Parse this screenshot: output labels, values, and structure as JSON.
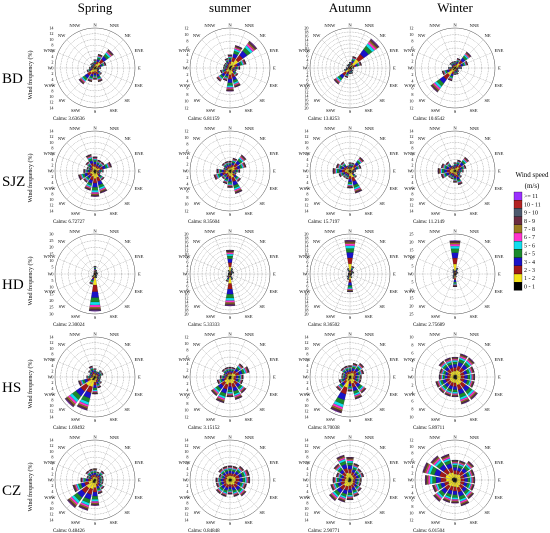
{
  "column_titles": [
    "Spring",
    "summer",
    "Autumn",
    "Winter"
  ],
  "row_labels": [
    "BD",
    "SJZ",
    "HD",
    "HS",
    "CZ"
  ],
  "ylabel": "Wind frequency (%)",
  "directions": [
    "N",
    "NNE",
    "NE",
    "ENE",
    "E",
    "ESE",
    "SE",
    "SSE",
    "S",
    "SSW",
    "SW",
    "WSW",
    "W",
    "WNW",
    "NW",
    "NNW"
  ],
  "calms_label": "Calms:",
  "legend": {
    "title_line1": "Wind speed",
    "title_line2": "(m/s)",
    "bins": [
      {
        "label": ">= 11",
        "color": "#9b30ff"
      },
      {
        "label": "10 - 11",
        "color": "#b22222"
      },
      {
        "label": "9 - 10",
        "color": "#4d5a6e"
      },
      {
        "label": "8 - 9",
        "color": "#6b2b40"
      },
      {
        "label": "7 - 8",
        "color": "#9a7b22"
      },
      {
        "label": "6 - 7",
        "color": "#ff33cc"
      },
      {
        "label": "5 - 6",
        "color": "#11ddee"
      },
      {
        "label": "4 - 5",
        "color": "#1a8a2c"
      },
      {
        "label": "3 - 4",
        "color": "#1a12c8"
      },
      {
        "label": "2 - 3",
        "color": "#a01818"
      },
      {
        "label": "1 - 2",
        "color": "#f4e21a"
      },
      {
        "label": "0 - 1",
        "color": "#000000"
      }
    ]
  },
  "chart_data": [
    {
      "type": "windrose",
      "site": "BD",
      "season": "Spring",
      "rmax": 14,
      "ticks": [
        2,
        4,
        6,
        8,
        10,
        12,
        14
      ],
      "calms": "3.63636",
      "frequencies": [
        3,
        5,
        8,
        4,
        2,
        1.5,
        3,
        5,
        4,
        5,
        7,
        3,
        2,
        1.5,
        2,
        2
      ]
    },
    {
      "type": "windrose",
      "site": "BD",
      "season": "summer",
      "rmax": 12,
      "ticks": [
        2,
        4,
        6,
        8,
        10,
        12
      ],
      "calms": "6.81159",
      "frequencies": [
        4,
        7,
        10,
        5,
        3,
        2,
        3,
        6,
        7,
        4,
        5,
        3,
        2,
        2,
        2,
        3
      ]
    },
    {
      "type": "windrose",
      "site": "BD",
      "season": "Autumn",
      "rmax": 20,
      "ticks": [
        2,
        4,
        6,
        8,
        10,
        12,
        14,
        16,
        18,
        20
      ],
      "calms": "13.8253",
      "frequencies": [
        3,
        6,
        18,
        6,
        2,
        1,
        2,
        3,
        3,
        5,
        10,
        3,
        2,
        1,
        2,
        2
      ]
    },
    {
      "type": "windrose",
      "site": "BD",
      "season": "Winter",
      "rmax": 12,
      "ticks": [
        2,
        4,
        6,
        8,
        10,
        12
      ],
      "calms": "10.6542",
      "frequencies": [
        2,
        3,
        6,
        4,
        2,
        1,
        1.5,
        2,
        2,
        4,
        9,
        4,
        2,
        1,
        2,
        2
      ]
    },
    {
      "type": "windrose",
      "site": "SJZ",
      "season": "Spring",
      "rmax": 14,
      "ticks": [
        2,
        4,
        6,
        8,
        10,
        12,
        14
      ],
      "calms": "6.72727",
      "frequencies": [
        5,
        4,
        4,
        6,
        3,
        2,
        4,
        8,
        9,
        7,
        5,
        6,
        4,
        3,
        4,
        6
      ]
    },
    {
      "type": "windrose",
      "site": "SJZ",
      "season": "summer",
      "rmax": 12,
      "ticks": [
        2,
        4,
        6,
        8,
        10,
        12
      ],
      "calms": "8.35604",
      "frequencies": [
        3,
        4,
        6,
        5,
        3,
        2,
        4,
        7,
        5,
        4,
        3,
        5,
        4,
        2,
        3,
        3
      ]
    },
    {
      "type": "windrose",
      "site": "SJZ",
      "season": "Autumn",
      "rmax": 14,
      "ticks": [
        2,
        4,
        6,
        8,
        10,
        12,
        14
      ],
      "calms": "15.7197",
      "frequencies": [
        3,
        3,
        6,
        4,
        2,
        1.5,
        3,
        8,
        6,
        3,
        3,
        4,
        6,
        5,
        4,
        2
      ]
    },
    {
      "type": "windrose",
      "site": "SJZ",
      "season": "Winter",
      "rmax": 14,
      "ticks": [
        2,
        4,
        6,
        8,
        10,
        12,
        14
      ],
      "calms": "11.2149",
      "frequencies": [
        3,
        4,
        6,
        4,
        3,
        2,
        3,
        5,
        4,
        3,
        3,
        5,
        6,
        5,
        4,
        2
      ]
    },
    {
      "type": "windrose",
      "site": "HD",
      "season": "Spring",
      "rmax": 30,
      "ticks": [
        5,
        10,
        15,
        20,
        25,
        30
      ],
      "calms": "2.30024",
      "frequencies": [
        6,
        3,
        2,
        2,
        2,
        1,
        2,
        3,
        28,
        8,
        3,
        1,
        1,
        1,
        1,
        2
      ]
    },
    {
      "type": "windrose",
      "site": "HD",
      "season": "summer",
      "rmax": 20,
      "ticks": [
        2,
        4,
        6,
        8,
        10,
        12,
        14,
        16,
        18,
        20
      ],
      "calms": "5.33333",
      "frequencies": [
        12,
        3,
        2,
        2,
        1,
        1,
        1,
        3,
        16,
        4,
        2,
        1,
        1,
        1,
        1,
        2
      ]
    },
    {
      "type": "windrose",
      "site": "HD",
      "season": "Autumn",
      "rmax": 20,
      "ticks": [
        2,
        4,
        6,
        8,
        10,
        12,
        14,
        16,
        18,
        20
      ],
      "calms": "8.36502",
      "frequencies": [
        17,
        4,
        2,
        2,
        1,
        1,
        1,
        2,
        9,
        3,
        2,
        1,
        1,
        1,
        1,
        3
      ]
    },
    {
      "type": "windrose",
      "site": "HD",
      "season": "Winter",
      "rmax": 25,
      "ticks": [
        5,
        10,
        15,
        20,
        25
      ],
      "calms": "2.75689",
      "frequencies": [
        21,
        4,
        2,
        2,
        1,
        1,
        1,
        2,
        8,
        3,
        2,
        1,
        1,
        1,
        2,
        3
      ]
    },
    {
      "type": "windrose",
      "site": "HS",
      "season": "Spring",
      "rmax": 14,
      "ticks": [
        2,
        4,
        6,
        8,
        10,
        12,
        14
      ],
      "calms": "1.69492",
      "frequencies": [
        3,
        2,
        3,
        3,
        2,
        2,
        3,
        4,
        6,
        12,
        13,
        6,
        3,
        2,
        3,
        4
      ]
    },
    {
      "type": "windrose",
      "site": "HS",
      "season": "summer",
      "rmax": 12,
      "ticks": [
        2,
        4,
        6,
        8,
        10,
        12
      ],
      "calms": "3.15152",
      "frequencies": [
        3,
        3,
        5,
        6,
        4,
        4,
        6,
        7,
        6,
        8,
        7,
        4,
        3,
        2,
        3,
        3
      ]
    },
    {
      "type": "windrose",
      "site": "HS",
      "season": "Autumn",
      "rmax": 14,
      "ticks": [
        2,
        4,
        6,
        8,
        10,
        12,
        14
      ],
      "calms": "8.70038",
      "frequencies": [
        4,
        5,
        6,
        5,
        4,
        4,
        7,
        8,
        5,
        13,
        6,
        4,
        3,
        3,
        4,
        4
      ]
    },
    {
      "type": "windrose",
      "site": "HS",
      "season": "Winter",
      "rmax": 10,
      "ticks": [
        2,
        4,
        6,
        8,
        10
      ],
      "calms": "5.89711",
      "frequencies": [
        5,
        6,
        6,
        5,
        5,
        5,
        7,
        7,
        5,
        5,
        5,
        5,
        4,
        4,
        5,
        5
      ]
    },
    {
      "type": "windrose",
      "site": "CZ",
      "season": "Spring",
      "rmax": 14,
      "ticks": [
        2,
        4,
        6,
        8,
        10,
        12,
        14
      ],
      "calms": "0.48426",
      "frequencies": [
        4,
        3,
        4,
        3,
        3,
        3,
        4,
        5,
        9,
        11,
        12,
        8,
        5,
        3,
        4,
        4
      ]
    },
    {
      "type": "windrose",
      "site": "CZ",
      "season": "summer",
      "rmax": 14,
      "ticks": [
        2,
        4,
        6,
        8,
        10,
        12,
        14
      ],
      "calms": "0.84848",
      "frequencies": [
        5,
        5,
        6,
        7,
        7,
        6,
        7,
        6,
        5,
        6,
        6,
        5,
        5,
        4,
        5,
        5
      ]
    },
    {
      "type": "windrose",
      "site": "CZ",
      "season": "Autumn",
      "rmax": 14,
      "ticks": [
        2,
        4,
        6,
        8,
        10,
        12,
        14
      ],
      "calms": "2.90771",
      "frequencies": [
        8,
        6,
        5,
        5,
        4,
        4,
        5,
        6,
        7,
        8,
        9,
        7,
        6,
        5,
        7,
        9
      ]
    },
    {
      "type": "windrose",
      "site": "CZ",
      "season": "Winter",
      "rmax": 12,
      "ticks": [
        2,
        4,
        6,
        8,
        10,
        12
      ],
      "calms": "6.01504",
      "frequencies": [
        6,
        6,
        7,
        6,
        6,
        6,
        7,
        8,
        7,
        7,
        8,
        7,
        9,
        10,
        9,
        8
      ]
    }
  ]
}
